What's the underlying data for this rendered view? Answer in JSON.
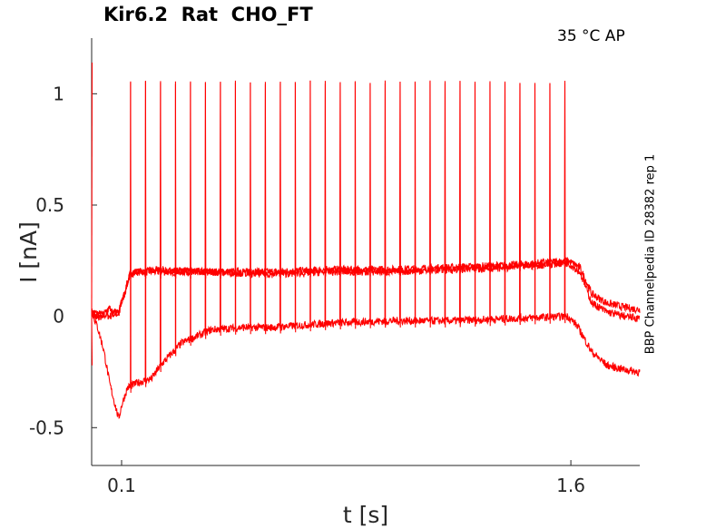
{
  "title": "Kir6.2  Rat  CHO_FT",
  "condition": "35 °C  AP",
  "source_label": "BBP Channelpedia ID 28382 rep 1",
  "chart_data": {
    "type": "line",
    "title": "Kir6.2  Rat  CHO_FT",
    "xlabel": "t [s]",
    "ylabel": "I [nA]",
    "xlim": [
      0.0,
      1.83
    ],
    "ylim": [
      -0.67,
      1.25
    ],
    "xticks": [
      0.1,
      1.6
    ],
    "xtick_labels": [
      "0.1",
      "1.6"
    ],
    "yticks": [
      -0.5,
      0,
      0.5,
      1
    ],
    "ytick_labels": [
      "-0.5",
      "0",
      "0.5",
      "1"
    ],
    "color": "#ff0000",
    "grid": false,
    "spike_times": [
      0.13,
      0.18,
      0.23,
      0.28,
      0.33,
      0.38,
      0.43,
      0.48,
      0.53,
      0.58,
      0.63,
      0.68,
      0.73,
      0.78,
      0.83,
      0.88,
      0.93,
      0.98,
      1.03,
      1.08,
      1.13,
      1.18,
      1.23,
      1.28,
      1.33,
      1.38,
      1.43,
      1.48,
      1.53,
      1.58
    ],
    "spike_peak": 1.05,
    "series": [
      {
        "points": [
          [
            0.0,
            0.02
          ],
          [
            0.03,
            0.01
          ],
          [
            0.06,
            0.0
          ],
          [
            0.09,
            0.02
          ],
          [
            0.11,
            0.1
          ],
          [
            0.13,
            0.2
          ],
          [
            0.2,
            0.2
          ],
          [
            0.4,
            0.2
          ],
          [
            0.6,
            0.2
          ],
          [
            0.8,
            0.21
          ],
          [
            1.0,
            0.21
          ],
          [
            1.2,
            0.22
          ],
          [
            1.4,
            0.23
          ],
          [
            1.59,
            0.25
          ],
          [
            1.63,
            0.22
          ],
          [
            1.67,
            0.1
          ],
          [
            1.72,
            0.06
          ],
          [
            1.78,
            0.04
          ],
          [
            1.83,
            0.03
          ]
        ]
      },
      {
        "points": [
          [
            0.0,
            0.02
          ],
          [
            0.02,
            -0.05
          ],
          [
            0.04,
            -0.15
          ],
          [
            0.06,
            -0.3
          ],
          [
            0.09,
            -0.46
          ],
          [
            0.1,
            -0.4
          ],
          [
            0.12,
            -0.32
          ],
          [
            0.15,
            -0.3
          ],
          [
            0.2,
            -0.28
          ],
          [
            0.23,
            -0.22
          ],
          [
            0.3,
            -0.12
          ],
          [
            0.4,
            -0.06
          ],
          [
            0.5,
            -0.05
          ],
          [
            0.6,
            -0.05
          ],
          [
            0.7,
            -0.04
          ],
          [
            0.8,
            -0.03
          ],
          [
            1.0,
            -0.02
          ],
          [
            1.2,
            -0.02
          ],
          [
            1.4,
            -0.01
          ],
          [
            1.59,
            0.0
          ],
          [
            1.62,
            -0.04
          ],
          [
            1.67,
            -0.16
          ],
          [
            1.72,
            -0.22
          ],
          [
            1.78,
            -0.24
          ],
          [
            1.83,
            -0.25
          ]
        ]
      },
      {
        "points": [
          [
            0.0,
            0.0
          ],
          [
            0.03,
            0.0
          ],
          [
            0.06,
            0.03
          ],
          [
            0.09,
            0.01
          ],
          [
            0.11,
            0.12
          ],
          [
            0.13,
            0.19
          ],
          [
            0.2,
            0.21
          ],
          [
            0.4,
            0.2
          ],
          [
            0.6,
            0.19
          ],
          [
            0.8,
            0.2
          ],
          [
            1.0,
            0.2
          ],
          [
            1.2,
            0.21
          ],
          [
            1.4,
            0.22
          ],
          [
            1.59,
            0.24
          ],
          [
            1.63,
            0.2
          ],
          [
            1.67,
            0.06
          ],
          [
            1.72,
            0.02
          ],
          [
            1.78,
            0.0
          ],
          [
            1.83,
            -0.01
          ]
        ]
      }
    ]
  }
}
